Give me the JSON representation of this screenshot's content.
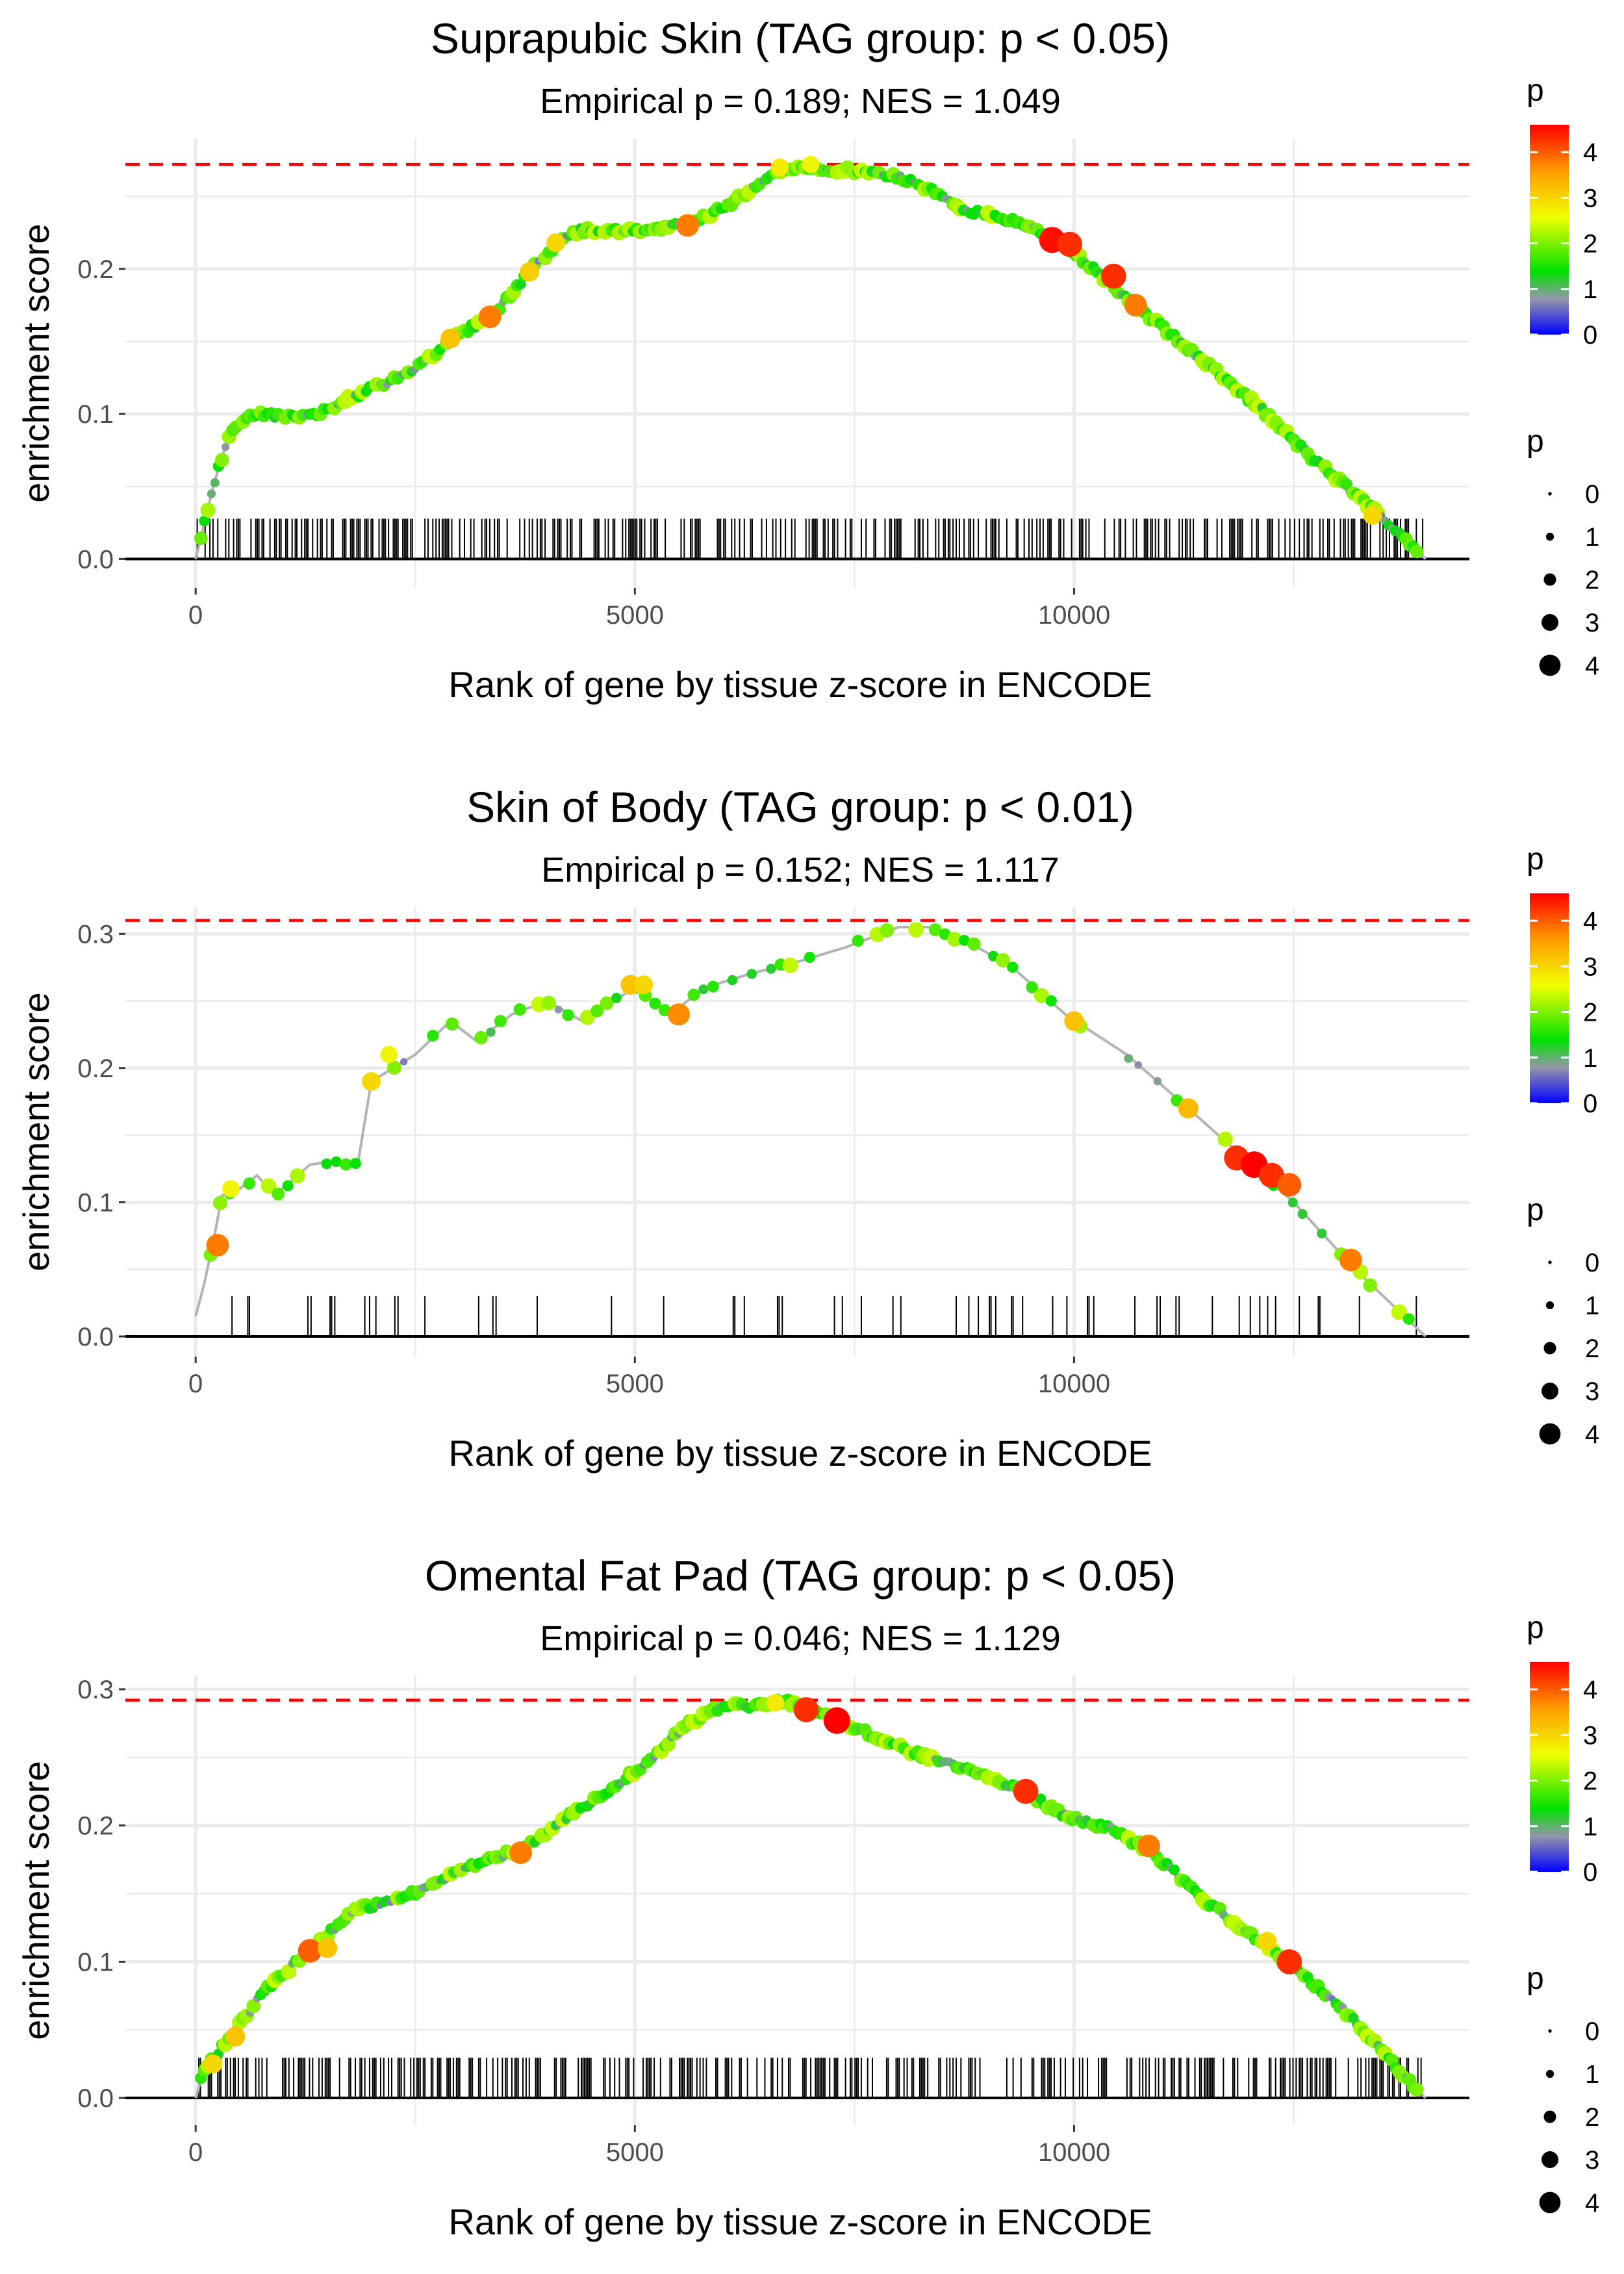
{
  "chart_data": [
    {
      "type": "line",
      "title": "Suprapubic Skin (TAG group: p < 0.05)",
      "subtitle": "Empirical p = 0.189; NES = 1.049",
      "xlabel": "Rank of gene by tissue z-score in ENCODE",
      "ylabel": "enrichment score",
      "xlim": [
        -800,
        14500
      ],
      "ylim": [
        -0.02,
        0.29
      ],
      "x_ticks": [
        0,
        5000,
        10000
      ],
      "x_tick_labels": [
        "0",
        "5000",
        "10000"
      ],
      "y_ticks": [
        0.0,
        0.1,
        0.2
      ],
      "y_tick_labels": [
        "0.0",
        "0.1",
        "0.2"
      ],
      "max_es": 0.272,
      "max_line_color": "#ff0000",
      "n_genes": 14000,
      "hit_density": 0.4,
      "curve": [
        [
          0,
          0.0
        ],
        [
          80,
          0.02
        ],
        [
          200,
          0.05
        ],
        [
          400,
          0.09
        ],
        [
          700,
          0.1
        ],
        [
          1300,
          0.098
        ],
        [
          1800,
          0.112
        ],
        [
          2400,
          0.128
        ],
        [
          2900,
          0.15
        ],
        [
          3400,
          0.17
        ],
        [
          3900,
          0.205
        ],
        [
          4300,
          0.226
        ],
        [
          5000,
          0.227
        ],
        [
          5600,
          0.23
        ],
        [
          6100,
          0.245
        ],
        [
          6500,
          0.264
        ],
        [
          6700,
          0.27
        ],
        [
          7200,
          0.268
        ],
        [
          7600,
          0.268
        ],
        [
          8200,
          0.26
        ],
        [
          8800,
          0.24
        ],
        [
          9300,
          0.233
        ],
        [
          9800,
          0.22
        ],
        [
          10300,
          0.196
        ],
        [
          10900,
          0.165
        ],
        [
          11500,
          0.135
        ],
        [
          12100,
          0.105
        ],
        [
          12700,
          0.07
        ],
        [
          13300,
          0.04
        ],
        [
          13800,
          0.012
        ],
        [
          14000,
          0.0
        ]
      ],
      "highlights": [
        [
          5600,
          0.23,
          3.8
        ],
        [
          9750,
          0.22,
          4.5
        ],
        [
          9950,
          0.217,
          4.3
        ],
        [
          10450,
          0.195,
          4.3
        ],
        [
          10700,
          0.175,
          3.8
        ],
        [
          3350,
          0.167,
          3.8
        ],
        [
          2900,
          0.152,
          3.2
        ],
        [
          3800,
          0.198,
          3.1
        ],
        [
          4100,
          0.218,
          3.0
        ],
        [
          6650,
          0.27,
          2.8
        ],
        [
          7000,
          0.272,
          2.7
        ],
        [
          13400,
          0.03,
          3.0
        ]
      ],
      "legend": {
        "color_title": "p",
        "color_breaks": [
          "0",
          "1",
          "2",
          "3",
          "4"
        ],
        "size_title": "p",
        "size_breaks": [
          "0",
          "1",
          "2",
          "3",
          "4"
        ]
      }
    },
    {
      "type": "line",
      "title": "Skin of Body (TAG group: p < 0.01)",
      "subtitle": "Empirical p = 0.152; NES = 1.117",
      "xlabel": "Rank of gene by tissue z-score in ENCODE",
      "ylabel": "enrichment score",
      "xlim": [
        -800,
        14500
      ],
      "ylim": [
        -0.015,
        0.32
      ],
      "x_ticks": [
        0,
        5000,
        10000
      ],
      "x_tick_labels": [
        "0",
        "5000",
        "10000"
      ],
      "y_ticks": [
        0.0,
        0.1,
        0.2,
        0.3
      ],
      "y_tick_labels": [
        "0.0",
        "0.1",
        "0.2",
        "0.3"
      ],
      "max_es": 0.31,
      "max_line_color": "#ff0000",
      "n_genes": 14000,
      "hit_density": 0.08,
      "curve": [
        [
          0,
          0.015
        ],
        [
          100,
          0.04
        ],
        [
          200,
          0.07
        ],
        [
          300,
          0.105
        ],
        [
          500,
          0.11
        ],
        [
          700,
          0.12
        ],
        [
          900,
          0.105
        ],
        [
          1300,
          0.128
        ],
        [
          1500,
          0.13
        ],
        [
          1850,
          0.13
        ],
        [
          2000,
          0.19
        ],
        [
          2500,
          0.21
        ],
        [
          2900,
          0.235
        ],
        [
          3200,
          0.22
        ],
        [
          3600,
          0.24
        ],
        [
          4000,
          0.25
        ],
        [
          4400,
          0.235
        ],
        [
          5000,
          0.26
        ],
        [
          5400,
          0.24
        ],
        [
          5800,
          0.26
        ],
        [
          6300,
          0.27
        ],
        [
          6900,
          0.28
        ],
        [
          7400,
          0.29
        ],
        [
          8000,
          0.305
        ],
        [
          8400,
          0.305
        ],
        [
          8900,
          0.29
        ],
        [
          9300,
          0.275
        ],
        [
          9900,
          0.24
        ],
        [
          10600,
          0.21
        ],
        [
          11300,
          0.17
        ],
        [
          11900,
          0.135
        ],
        [
          12500,
          0.1
        ],
        [
          13200,
          0.05
        ],
        [
          14000,
          0.0
        ]
      ],
      "highlights": [
        [
          250,
          0.068,
          3.8
        ],
        [
          11300,
          0.17,
          3.3
        ],
        [
          11850,
          0.133,
          4.3
        ],
        [
          12050,
          0.128,
          4.6
        ],
        [
          12250,
          0.12,
          4.3
        ],
        [
          12450,
          0.113,
          4.0
        ],
        [
          13150,
          0.057,
          3.8
        ],
        [
          4950,
          0.262,
          3.2
        ],
        [
          5100,
          0.262,
          3.0
        ],
        [
          5500,
          0.24,
          3.7
        ],
        [
          10000,
          0.235,
          3.2
        ],
        [
          2000,
          0.19,
          3.0
        ],
        [
          2200,
          0.21,
          2.7
        ],
        [
          400,
          0.11,
          2.7
        ]
      ],
      "legend": {
        "color_title": "p",
        "color_breaks": [
          "0",
          "1",
          "2",
          "3",
          "4"
        ],
        "size_title": "p",
        "size_breaks": [
          "0",
          "1",
          "2",
          "3",
          "4"
        ]
      }
    },
    {
      "type": "line",
      "title": "Omental Fat Pad (TAG group: p < 0.05)",
      "subtitle": "Empirical p = 0.046; NES = 1.129",
      "xlabel": "Rank of gene by tissue z-score in ENCODE",
      "ylabel": "enrichment score",
      "xlim": [
        -800,
        14500
      ],
      "ylim": [
        -0.02,
        0.31
      ],
      "x_ticks": [
        0,
        5000,
        10000
      ],
      "x_tick_labels": [
        "0",
        "5000",
        "10000"
      ],
      "y_ticks": [
        0.0,
        0.1,
        0.2,
        0.3
      ],
      "y_tick_labels": [
        "0.0",
        "0.1",
        "0.2",
        "0.3"
      ],
      "max_es": 0.292,
      "max_line_color": "#ff0000",
      "n_genes": 14000,
      "hit_density": 0.4,
      "curve": [
        [
          0,
          0.0
        ],
        [
          100,
          0.022
        ],
        [
          400,
          0.045
        ],
        [
          800,
          0.08
        ],
        [
          1300,
          0.108
        ],
        [
          1800,
          0.138
        ],
        [
          2300,
          0.145
        ],
        [
          2800,
          0.16
        ],
        [
          3300,
          0.175
        ],
        [
          3700,
          0.182
        ],
        [
          4200,
          0.205
        ],
        [
          4700,
          0.225
        ],
        [
          5200,
          0.25
        ],
        [
          5600,
          0.275
        ],
        [
          6000,
          0.288
        ],
        [
          6400,
          0.288
        ],
        [
          6700,
          0.292
        ],
        [
          7000,
          0.285
        ],
        [
          7400,
          0.275
        ],
        [
          7900,
          0.26
        ],
        [
          8400,
          0.248
        ],
        [
          8900,
          0.24
        ],
        [
          9400,
          0.226
        ],
        [
          9900,
          0.207
        ],
        [
          10400,
          0.198
        ],
        [
          10900,
          0.18
        ],
        [
          11400,
          0.15
        ],
        [
          11900,
          0.125
        ],
        [
          12400,
          0.1
        ],
        [
          12900,
          0.075
        ],
        [
          13300,
          0.05
        ],
        [
          13700,
          0.02
        ],
        [
          14000,
          0.0
        ]
      ],
      "highlights": [
        [
          6950,
          0.285,
          4.3
        ],
        [
          7300,
          0.277,
          4.6
        ],
        [
          9450,
          0.225,
          4.3
        ],
        [
          10850,
          0.185,
          3.8
        ],
        [
          12450,
          0.1,
          4.3
        ],
        [
          1300,
          0.108,
          4.0
        ],
        [
          1500,
          0.11,
          3.2
        ],
        [
          3700,
          0.18,
          3.8
        ],
        [
          200,
          0.025,
          3.0
        ],
        [
          450,
          0.045,
          3.2
        ],
        [
          6600,
          0.29,
          2.8
        ],
        [
          12200,
          0.115,
          3.0
        ]
      ],
      "legend": {
        "color_title": "p",
        "color_breaks": [
          "0",
          "1",
          "2",
          "3",
          "4"
        ],
        "size_title": "p",
        "size_breaks": [
          "0",
          "1",
          "2",
          "3",
          "4"
        ]
      }
    }
  ]
}
